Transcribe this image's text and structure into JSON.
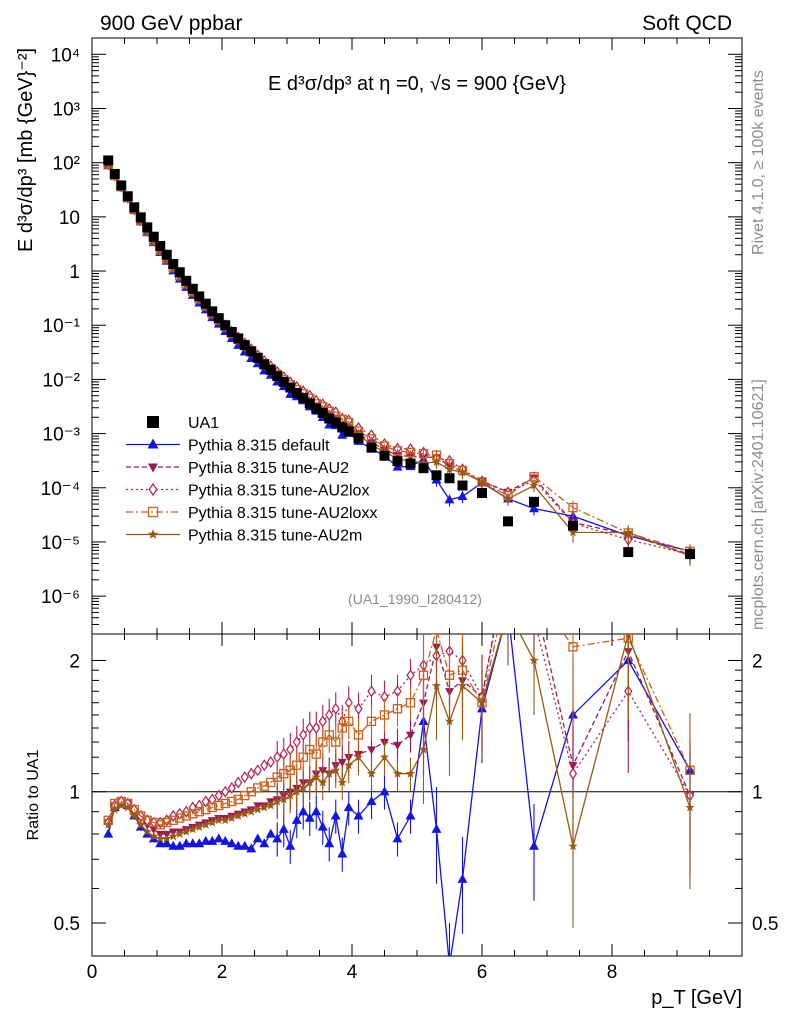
{
  "header": {
    "left": "900 GeV ppbar",
    "right": "Soft QCD",
    "plot_title": "E d³σ/dp³ at η =0, √s = 900 {GeV}",
    "side_top": "Rivet 4.1.0, ≥ 100k events",
    "side_bottom": "mcplots.cern.ch [arXiv:2401.10621]",
    "analysis": "(UA1_1990_I280412)"
  },
  "chart_data": {
    "type": "scatter",
    "title": "E d³σ/dp³ at η =0, √s = 900 {GeV}",
    "xlabel": "p_T [GeV]",
    "ylabel": "E d³σ/dp³ [mb {GeV}⁻²]",
    "ratio_ylabel": "Ratio to UA1",
    "xlim": [
      0,
      10
    ],
    "ylim": [
      2e-07,
      20000.0
    ],
    "ratio_ylim": [
      0.42,
      2.3
    ],
    "xticks": [
      0,
      2,
      4,
      6,
      8
    ],
    "yticks_labels": [
      "10⁻⁶",
      "10⁻⁵",
      "10⁻⁴",
      "10⁻³",
      "10⁻²",
      "10⁻¹",
      "1",
      "10",
      "10²",
      "10³",
      "10⁴"
    ],
    "ratio_ticks": [
      0.5,
      1,
      2
    ],
    "ua1": {
      "name": "UA1",
      "x": [
        0.25,
        0.35,
        0.45,
        0.55,
        0.65,
        0.75,
        0.85,
        0.95,
        1.05,
        1.15,
        1.25,
        1.35,
        1.45,
        1.55,
        1.65,
        1.75,
        1.85,
        1.95,
        2.05,
        2.15,
        2.25,
        2.35,
        2.45,
        2.55,
        2.65,
        2.75,
        2.85,
        2.95,
        3.05,
        3.15,
        3.25,
        3.35,
        3.45,
        3.55,
        3.65,
        3.75,
        3.85,
        3.95,
        4.1,
        4.3,
        4.5,
        4.7,
        4.9,
        5.1,
        5.3,
        5.5,
        5.7,
        6.0,
        6.4,
        6.8,
        7.4,
        8.25,
        9.2
      ],
      "y": [
        110,
        62,
        38,
        24,
        15,
        9.8,
        6.4,
        4.3,
        2.9,
        2.0,
        1.35,
        0.95,
        0.66,
        0.47,
        0.34,
        0.25,
        0.18,
        0.135,
        0.1,
        0.075,
        0.057,
        0.043,
        0.033,
        0.025,
        0.019,
        0.015,
        0.0115,
        0.009,
        0.0071,
        0.0056,
        0.0045,
        0.0036,
        0.0029,
        0.0024,
        0.0019,
        0.0016,
        0.0013,
        0.0011,
        0.00082,
        0.00055,
        0.00039,
        0.00031,
        0.00028,
        0.00023,
        0.00017,
        0.00015,
        0.00011,
        8e-05,
        2.4e-05,
        5.5e-05,
        2e-05,
        6.5e-06,
        6e-06
      ]
    },
    "series": [
      {
        "name": "Pythia 8.315 default",
        "color": "#1414e6",
        "marker": "triangle-up",
        "line": "solid",
        "ratio": [
          0.8,
          0.92,
          0.95,
          0.93,
          0.88,
          0.83,
          0.8,
          0.78,
          0.76,
          0.76,
          0.75,
          0.75,
          0.76,
          0.76,
          0.76,
          0.77,
          0.77,
          0.78,
          0.77,
          0.76,
          0.75,
          0.75,
          0.74,
          0.78,
          0.76,
          0.8,
          0.78,
          0.82,
          0.75,
          0.86,
          0.9,
          0.87,
          0.9,
          0.83,
          0.76,
          0.88,
          0.72,
          0.92,
          0.88,
          0.95,
          1.0,
          0.78,
          0.88,
          1.45,
          0.82,
          0.4,
          0.63,
          1.55,
          2.6,
          0.75,
          1.5,
          2.0,
          1.12
        ]
      },
      {
        "name": "Pythia 8.315 tune-AU2",
        "color": "#9c1a52",
        "marker": "triangle-down",
        "line": "dashed",
        "ratio": [
          0.85,
          0.93,
          0.95,
          0.94,
          0.9,
          0.87,
          0.84,
          0.82,
          0.8,
          0.8,
          0.81,
          0.81,
          0.82,
          0.83,
          0.84,
          0.85,
          0.86,
          0.87,
          0.87,
          0.88,
          0.89,
          0.9,
          0.91,
          0.93,
          0.93,
          0.95,
          0.96,
          0.98,
          1.0,
          1.02,
          1.05,
          1.05,
          1.1,
          1.12,
          1.1,
          1.15,
          1.17,
          1.2,
          1.22,
          1.25,
          1.3,
          1.28,
          1.35,
          1.6,
          2.15,
          1.7,
          1.8,
          1.65,
          3.5,
          2.8,
          1.15,
          2.1,
          0.98
        ]
      },
      {
        "name": "Pythia 8.315 tune-AU2lox",
        "color": "#b31d50",
        "marker": "diamond",
        "line": "dotted",
        "ratio": [
          0.85,
          0.93,
          0.95,
          0.94,
          0.91,
          0.88,
          0.86,
          0.85,
          0.85,
          0.86,
          0.88,
          0.89,
          0.9,
          0.92,
          0.93,
          0.95,
          0.96,
          0.98,
          1.0,
          1.02,
          1.05,
          1.08,
          1.1,
          1.12,
          1.15,
          1.17,
          1.2,
          1.22,
          1.25,
          1.3,
          1.35,
          1.4,
          1.4,
          1.45,
          1.5,
          1.55,
          1.45,
          1.6,
          1.55,
          1.7,
          1.65,
          1.7,
          1.85,
          1.95,
          2.05,
          2.1,
          2.0,
          1.65,
          3.4,
          2.5,
          1.1,
          1.7,
          0.98
        ]
      },
      {
        "name": "Pythia 8.315 tune-AU2loxx",
        "color": "#c8601e",
        "marker": "square-open",
        "line": "dashdot",
        "ratio": [
          0.86,
          0.94,
          0.95,
          0.94,
          0.91,
          0.88,
          0.86,
          0.85,
          0.84,
          0.85,
          0.86,
          0.87,
          0.88,
          0.89,
          0.9,
          0.91,
          0.92,
          0.93,
          0.94,
          0.95,
          0.96,
          0.98,
          1.0,
          1.02,
          1.03,
          1.05,
          1.08,
          1.1,
          1.12,
          1.15,
          1.2,
          1.25,
          1.22,
          1.3,
          1.35,
          1.3,
          1.4,
          1.45,
          1.35,
          1.45,
          1.5,
          1.55,
          1.6,
          1.85,
          2.35,
          1.85,
          1.9,
          1.6,
          3.0,
          2.9,
          2.15,
          2.25,
          1.12
        ]
      },
      {
        "name": "Pythia 8.315 tune-AU2m",
        "color": "#9a5a14",
        "marker": "star",
        "line": "solid",
        "ratio": [
          0.84,
          0.91,
          0.93,
          0.92,
          0.88,
          0.84,
          0.81,
          0.79,
          0.78,
          0.78,
          0.79,
          0.8,
          0.81,
          0.82,
          0.83,
          0.84,
          0.85,
          0.86,
          0.86,
          0.87,
          0.88,
          0.89,
          0.9,
          0.91,
          0.92,
          0.93,
          0.95,
          0.96,
          0.98,
          1.0,
          1.02,
          1.05,
          1.08,
          1.05,
          1.1,
          1.12,
          1.05,
          1.15,
          1.2,
          1.1,
          1.2,
          1.1,
          1.1,
          1.25,
          1.75,
          1.45,
          1.75,
          1.6,
          2.6,
          2.0,
          0.75,
          2.3,
          0.92
        ]
      }
    ]
  }
}
